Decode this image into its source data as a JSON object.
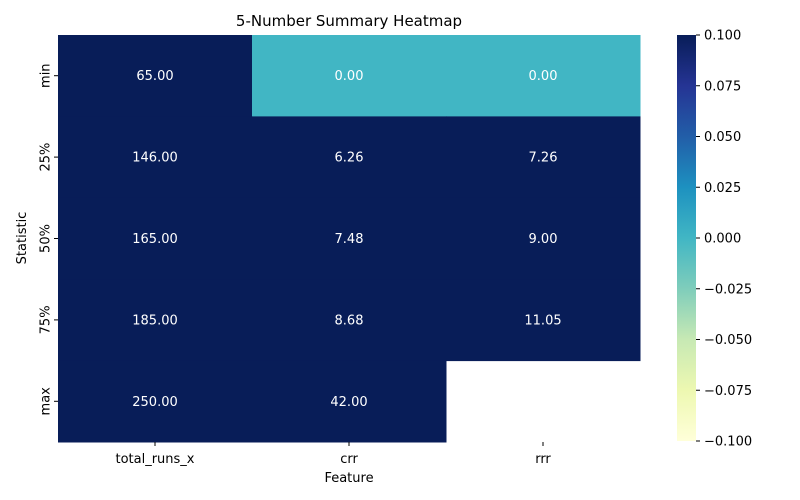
{
  "chart_data": {
    "type": "heatmap",
    "title": "5-Number Summary Heatmap",
    "xlabel": "Feature",
    "ylabel": "Statistic",
    "columns": [
      "total_runs_x",
      "crr",
      "rrr"
    ],
    "rows": [
      "min",
      "25%",
      "50%",
      "75%",
      "max"
    ],
    "values": [
      [
        65.0,
        0.0,
        0.0
      ],
      [
        146.0,
        6.26,
        7.26
      ],
      [
        165.0,
        7.48,
        9.0
      ],
      [
        185.0,
        8.68,
        11.05
      ],
      [
        250.0,
        42.0,
        null
      ]
    ],
    "cell_labels": [
      [
        "65.00",
        "0.00",
        "0.00"
      ],
      [
        "146.00",
        "6.26",
        "7.26"
      ],
      [
        "165.00",
        "7.48",
        "9.00"
      ],
      [
        "185.00",
        "8.68",
        "11.05"
      ],
      [
        "250.00",
        "42.00",
        ""
      ]
    ],
    "colormap": "YlGnBu",
    "color_range": [
      -0.1,
      0.1
    ],
    "colorbar_ticks": [
      "0.100",
      "0.075",
      "0.050",
      "0.025",
      "0.000",
      "−0.025",
      "−0.050",
      "−0.075",
      "−0.100"
    ],
    "colorbar_tick_values": [
      0.1,
      0.075,
      0.05,
      0.025,
      0.0,
      -0.025,
      -0.05,
      -0.075,
      -0.1
    ],
    "colors": {
      "high": "#081d58",
      "zero": "#41b6c4",
      "low": "#ffffd9",
      "annotation_text": "#ffffff"
    }
  }
}
